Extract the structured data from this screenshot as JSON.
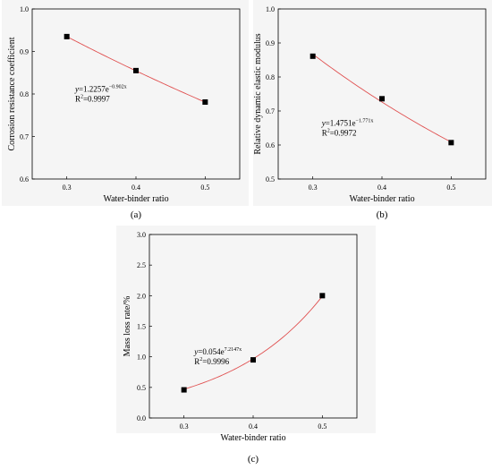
{
  "chart_data": [
    {
      "type": "scatter",
      "panel_label": "(a)",
      "xlabel": "Water-binder ratio",
      "ylabel": "Corrosion resistance coefficient",
      "xlim": [
        0.25,
        0.55
      ],
      "ylim": [
        0.6,
        1.0
      ],
      "xticks": [
        0.3,
        0.4,
        0.5
      ],
      "yticks": [
        0.6,
        0.7,
        0.8,
        0.9,
        1.0
      ],
      "x": [
        0.3,
        0.4,
        0.5
      ],
      "y": [
        0.935,
        0.855,
        0.781
      ],
      "fit": {
        "a": 1.2257,
        "b": -0.902
      },
      "equation": {
        "lhs": "y",
        "base": "=1.2257e",
        "exp": "−0.902x",
        "r2_base": "R",
        "r2_exp": "2",
        "r2_val": "=0.9997"
      },
      "line_color": "#e05050",
      "grid": false
    },
    {
      "type": "scatter",
      "panel_label": "(b)",
      "xlabel": "Water-binder ratio",
      "ylabel": "Relative dynamic elastic modulus",
      "xlim": [
        0.25,
        0.55
      ],
      "ylim": [
        0.5,
        1.0
      ],
      "xticks": [
        0.3,
        0.4,
        0.5
      ],
      "yticks": [
        0.5,
        0.6,
        0.7,
        0.8,
        0.9,
        1.0
      ],
      "x": [
        0.3,
        0.4,
        0.5
      ],
      "y": [
        0.861,
        0.736,
        0.607
      ],
      "fit": {
        "a": 1.4751,
        "b": -1.771
      },
      "equation": {
        "lhs": "y",
        "base": "=1.4751e",
        "exp": "−1.771x",
        "r2_base": "R",
        "r2_exp": "2",
        "r2_val": "=0.9972"
      },
      "line_color": "#e05050",
      "grid": false
    },
    {
      "type": "scatter",
      "panel_label": "(c)",
      "xlabel": "Water-binder ratio",
      "ylabel": "Mass loss rate/%",
      "xlim": [
        0.25,
        0.55
      ],
      "ylim": [
        0.0,
        3.0
      ],
      "xticks": [
        0.3,
        0.4,
        0.5
      ],
      "yticks": [
        0.0,
        0.5,
        1.0,
        1.5,
        2.0,
        2.5,
        3.0
      ],
      "ytick_decimals": 1,
      "x": [
        0.3,
        0.4,
        0.5
      ],
      "y": [
        0.46,
        0.95,
        2.0
      ],
      "fit": {
        "a": 0.054,
        "b": 7.2147
      },
      "equation": {
        "lhs": "y",
        "base": "=0.054e",
        "exp": "7.2147x",
        "r2_base": "R",
        "r2_exp": "2",
        "r2_val": "=0.9996"
      },
      "line_color": "#e05050",
      "grid": false
    }
  ]
}
